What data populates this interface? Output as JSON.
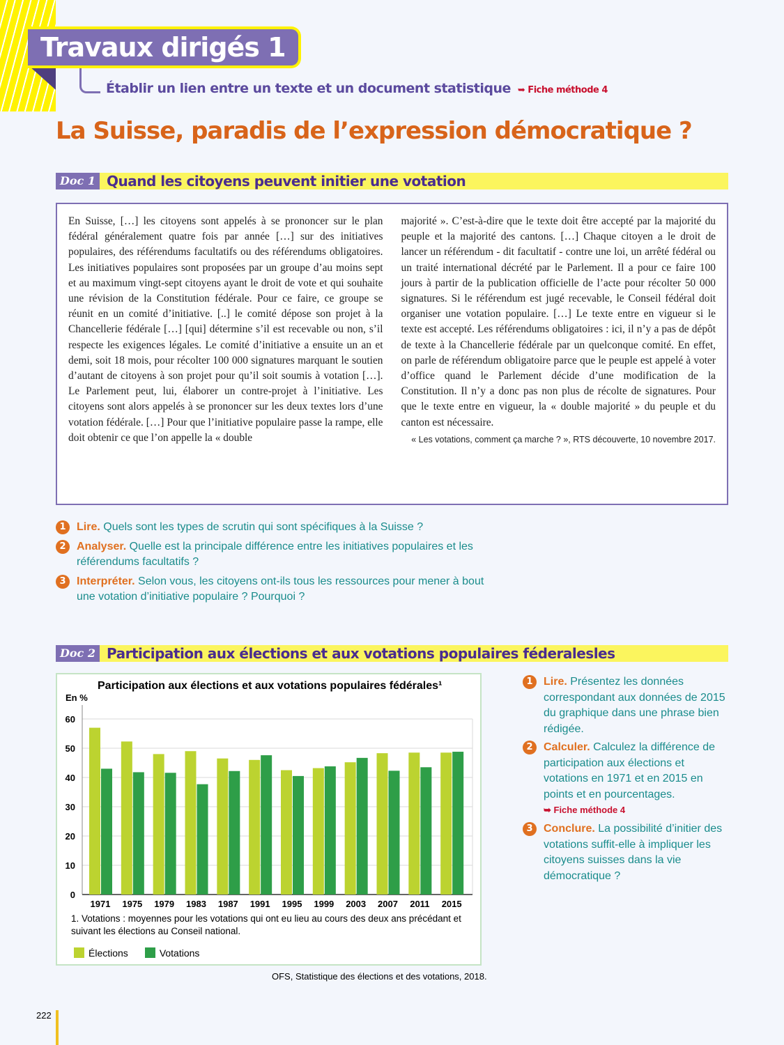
{
  "header": {
    "title": "Travaux dirigés 1",
    "subtitle": "Établir un lien entre un texte et un document statistique",
    "fiche": "➥ Fiche méthode 4"
  },
  "main_title": "La Suisse, paradis de l’expression démocratique ?",
  "doc1": {
    "tag": "Doc 1",
    "title": "Quand les citoyens peuvent initier une votation",
    "col1": "En Suisse, […] les citoyens sont appelés à se prononcer sur le plan fédéral généralement quatre fois par année […] sur des initiatives populaires, des référendums facultatifs ou des référendums obligatoires. Les initiatives populaires sont proposées par un groupe d’au moins sept et au maximum vingt-sept citoyens ayant le droit de vote et qui souhaite une révision de la Constitution fédérale. Pour ce faire, ce groupe se réunit en un comité d’initiative. [..] le comité dépose son projet à la Chancellerie fédérale […] [qui] détermine s’il est recevable ou non, s’il respecte les exigences légales. Le comité d’initiative a ensuite un an et demi, soit 18 mois, pour récolter 100 000 signatures marquant le soutien d’autant de citoyens à son projet pour qu’il soit soumis à votation […]. Le Parlement peut, lui, élaborer un contre-projet à l’initiative. Les citoyens sont alors appelés à se prononcer sur les deux textes lors d’une votation fédérale. […] Pour que l’initiative populaire passe la rampe, elle doit obtenir ce que l’on appelle la « double",
    "col2": "majorité ». C’est-à-dire que le texte doit être accepté par la majorité du peuple et la majorité des cantons. […] Chaque citoyen a le droit de lancer un référendum - dit facultatif - contre une loi, un arrêté fédéral ou un traité international décrété par le Parlement. Il a pour ce faire 100 jours à partir de la publication officielle de l’acte pour récolter 50 000 signatures. Si le référendum est jugé recevable, le Conseil fédéral doit organiser une votation populaire. […] Le texte entre en vigueur si le texte est accepté. Les référendums obligatoires : ici, il n’y a pas de dépôt de texte à la Chancellerie fédérale par un quelconque comité. En effet, on parle de référendum obligatoire parce que le peuple est appelé à voter d’office quand le Parlement décide d’une modification de la Constitution. Il n’y a donc pas non plus de récolte de signatures. Pour que le texte entre en vigueur, la « double majorité » du peuple et du canton est nécessaire.",
    "source": "« Les votations, comment ça marche ? », RTS découverte, 10 novembre 2017.",
    "questions": [
      {
        "n": "1",
        "key": "Lire.",
        "text": " Quels sont les types de scrutin qui sont spécifiques à la Suisse ?"
      },
      {
        "n": "2",
        "key": "Analyser.",
        "text": " Quelle est la principale différence entre les initiatives populaires et les référendums facultatifs ?"
      },
      {
        "n": "3",
        "key": "Interpréter.",
        "text": " Selon vous, les citoyens ont-ils tous les ressources pour mener à bout une votation d’initiative populaire ? Pourquoi ?"
      }
    ]
  },
  "doc2": {
    "tag": "Doc 2",
    "title": "Participation aux élections et aux votations populaires féderalesles",
    "note": "1. Votations : moyennes pour les votations qui ont eu lieu au cours des deux ans précédant et suivant les élections au Conseil national.",
    "source": "OFS, Statistique des élections et des votations, 2018.",
    "questions": [
      {
        "n": "1",
        "key": "Lire.",
        "text": " Présentez les données correspondant aux données de 2015 du graphique dans une phrase bien rédigée."
      },
      {
        "n": "2",
        "key": "Calculer.",
        "text": " Calculez la différence de participation aux élections et votations en 1971 et en 2015 en points et en pourcentages.",
        "fiche": "➥ Fiche méthode 4"
      },
      {
        "n": "3",
        "key": "Conclure.",
        "text": " La possibilité d’initier des votations suffit-elle à impliquer les citoyens suisses dans la vie démocratique ?"
      }
    ]
  },
  "chart_data": {
    "type": "bar",
    "title": "Participation aux élections et aux votations populaires fédérales¹",
    "ylabel": "En %",
    "ylim": [
      0,
      60
    ],
    "yticks": [
      "0",
      "10",
      "20",
      "30",
      "40",
      "50",
      "60"
    ],
    "grid": true,
    "legend": "bottom-left",
    "categories": [
      "1971",
      "1975",
      "1979",
      "1983",
      "1987",
      "1991",
      "1995",
      "1999",
      "2003",
      "2007",
      "2011",
      "2015"
    ],
    "series": [
      {
        "name": "Élections",
        "color": "#bcd330",
        "values": [
          57,
          52.3,
          48,
          49,
          46.5,
          46,
          42.5,
          43.2,
          45.2,
          48.3,
          48.5,
          48.5
        ]
      },
      {
        "name": "Votations",
        "color": "#2e9e48",
        "values": [
          43,
          41.8,
          41.6,
          37.7,
          42.2,
          47.6,
          40.5,
          43.8,
          46.7,
          42.3,
          43.5,
          48.8
        ]
      }
    ]
  },
  "page_number": "222"
}
